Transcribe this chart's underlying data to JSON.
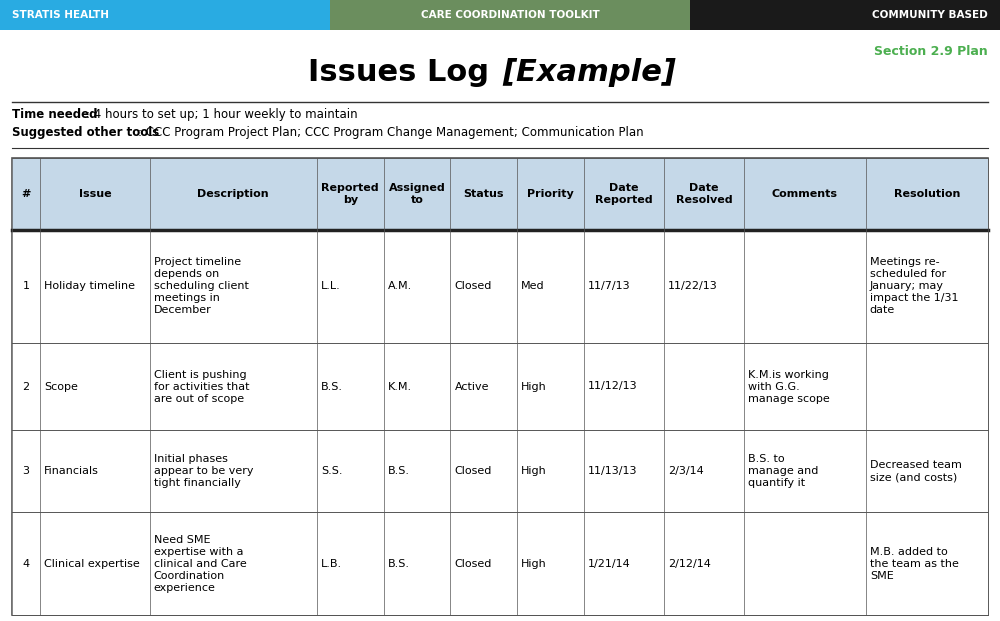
{
  "header_bar": {
    "left_text": "STRATIS HEALTH",
    "left_color": "#29ABE2",
    "center_text": "CARE COORDINATION TOOLKIT",
    "center_color": "#6B8E5E",
    "right_text": "COMMUNITY BASED",
    "right_color": "#1A1A1A"
  },
  "section_label": "Section 2.9 Plan",
  "section_label_color": "#4CAF50",
  "title": "Issues Log ",
  "title_italic": "[Example]",
  "time_needed_bold": "Time needed",
  "time_needed_text": ": 4 hours to set up; 1 hour weekly to maintain",
  "suggested_bold": "Suggested other tools",
  "suggested_text": ": CCC Program Project Plan; CCC Program Change Management; Communication Plan",
  "table_header_bg": "#C5D8E8",
  "table_border_color": "#555555",
  "table_thick_border": "#222222",
  "col_headers": [
    "#",
    "Issue",
    "Description",
    "Reported\nby",
    "Assigned\nto",
    "Status",
    "Priority",
    "Date\nReported",
    "Date\nResolved",
    "Comments",
    "Resolution"
  ],
  "col_widths_rel": [
    2.2,
    8.5,
    13.0,
    5.2,
    5.2,
    5.2,
    5.2,
    6.2,
    6.2,
    9.5,
    9.5
  ],
  "rows": [
    [
      "1",
      "Holiday timeline",
      "Project timeline\ndepends on\nscheduling client\nmeetings in\nDecember",
      "L.L.",
      "A.M.",
      "Closed",
      "Med",
      "11/7/13",
      "11/22/13",
      "",
      "Meetings re-\nscheduled for\nJanuary; may\nimpact the 1/31\ndate"
    ],
    [
      "2",
      "Scope",
      "Client is pushing\nfor activities that\nare out of scope",
      "B.S.",
      "K.M.",
      "Active",
      "High",
      "11/12/13",
      "",
      "K.M.is working\nwith G.G.\nmanage scope",
      ""
    ],
    [
      "3",
      "Financials",
      "Initial phases\nappear to be very\ntight financially",
      "S.S.",
      "B.S.",
      "Closed",
      "High",
      "11/13/13",
      "2/3/14",
      "B.S. to\nmanage and\nquantify it",
      "Decreased team\nsize (and costs)"
    ],
    [
      "4",
      "Clinical expertise",
      "Need SME\nexpertise with a\nclinical and Care\nCoordination\nexperience",
      "L.B.",
      "B.S.",
      "Closed",
      "High",
      "1/21/14",
      "2/12/14",
      "",
      "M.B. added to\nthe team as the\nSME"
    ]
  ],
  "row_heights_rel": [
    14.0,
    22.0,
    17.0,
    16.0,
    20.0
  ],
  "bg_color": "#FFFFFF",
  "text_color": "#000000"
}
